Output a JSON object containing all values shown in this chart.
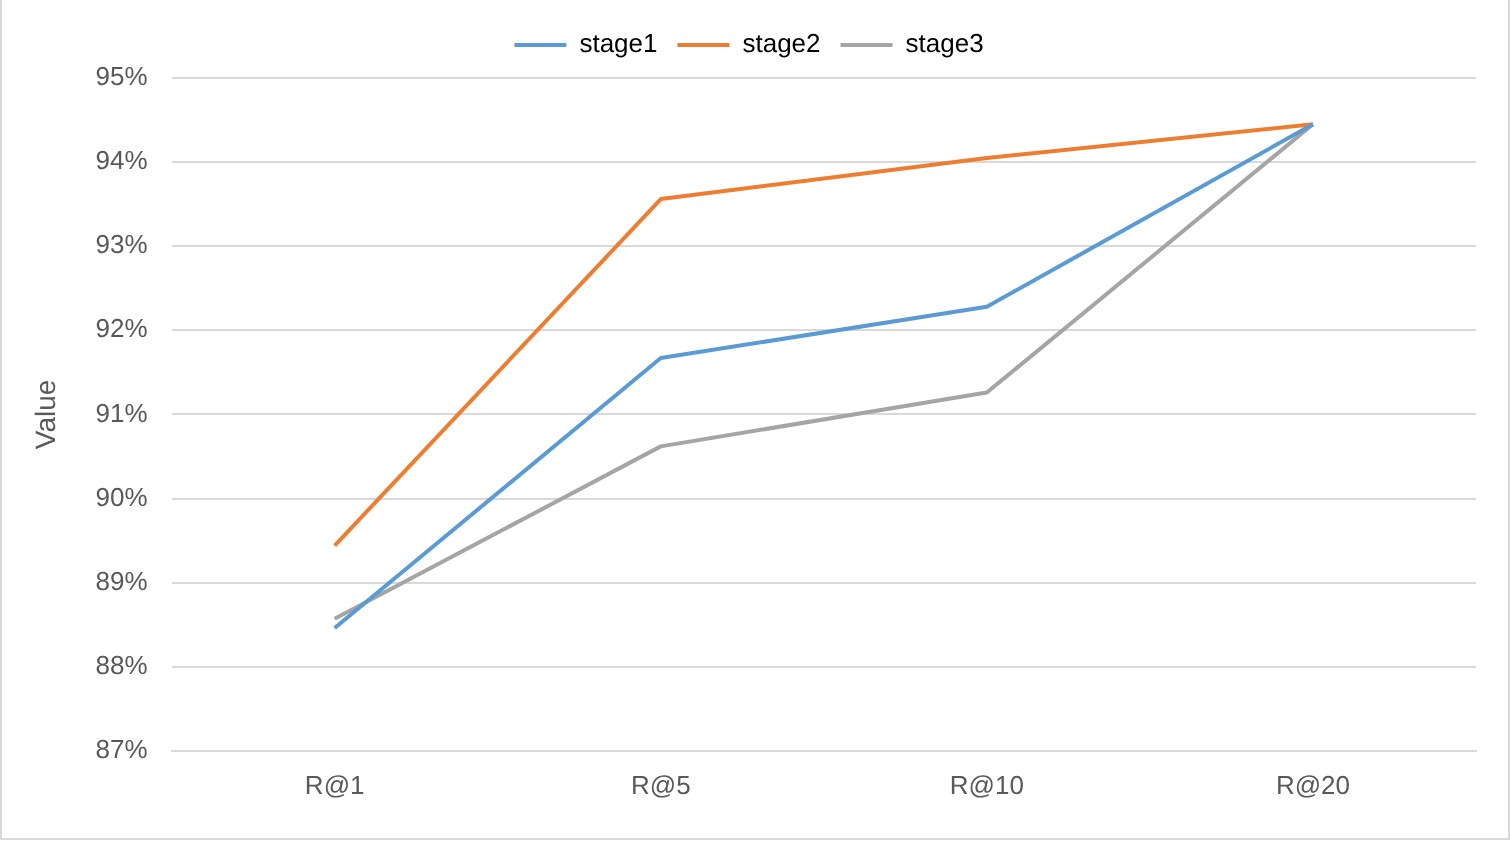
{
  "chart_data": {
    "type": "line",
    "ylabel": "Value",
    "categories": [
      "R@1",
      "R@5",
      "R@10",
      "R@20"
    ],
    "series": [
      {
        "name": "stage1",
        "color": "#5b9bd5",
        "values": [
          88.46,
          91.67,
          92.28,
          94.45
        ]
      },
      {
        "name": "stage2",
        "color": "#ed7d31",
        "values": [
          89.44,
          93.56,
          94.05,
          94.45
        ]
      },
      {
        "name": "stage3",
        "color": "#a5a5a5",
        "values": [
          88.57,
          90.62,
          91.26,
          94.45
        ]
      }
    ],
    "ylim": [
      87,
      95
    ],
    "yticks": [
      {
        "value": 87,
        "label": "87%"
      },
      {
        "value": 88,
        "label": "88%"
      },
      {
        "value": 89,
        "label": "89%"
      },
      {
        "value": 90,
        "label": "90%"
      },
      {
        "value": 91,
        "label": "91%"
      },
      {
        "value": 92,
        "label": "92%"
      },
      {
        "value": 93,
        "label": "93%"
      },
      {
        "value": 94,
        "label": "94%"
      },
      {
        "value": 95,
        "label": "95%"
      }
    ],
    "grid": "y",
    "legend": "top",
    "marker": "none",
    "line_style": "solid"
  }
}
